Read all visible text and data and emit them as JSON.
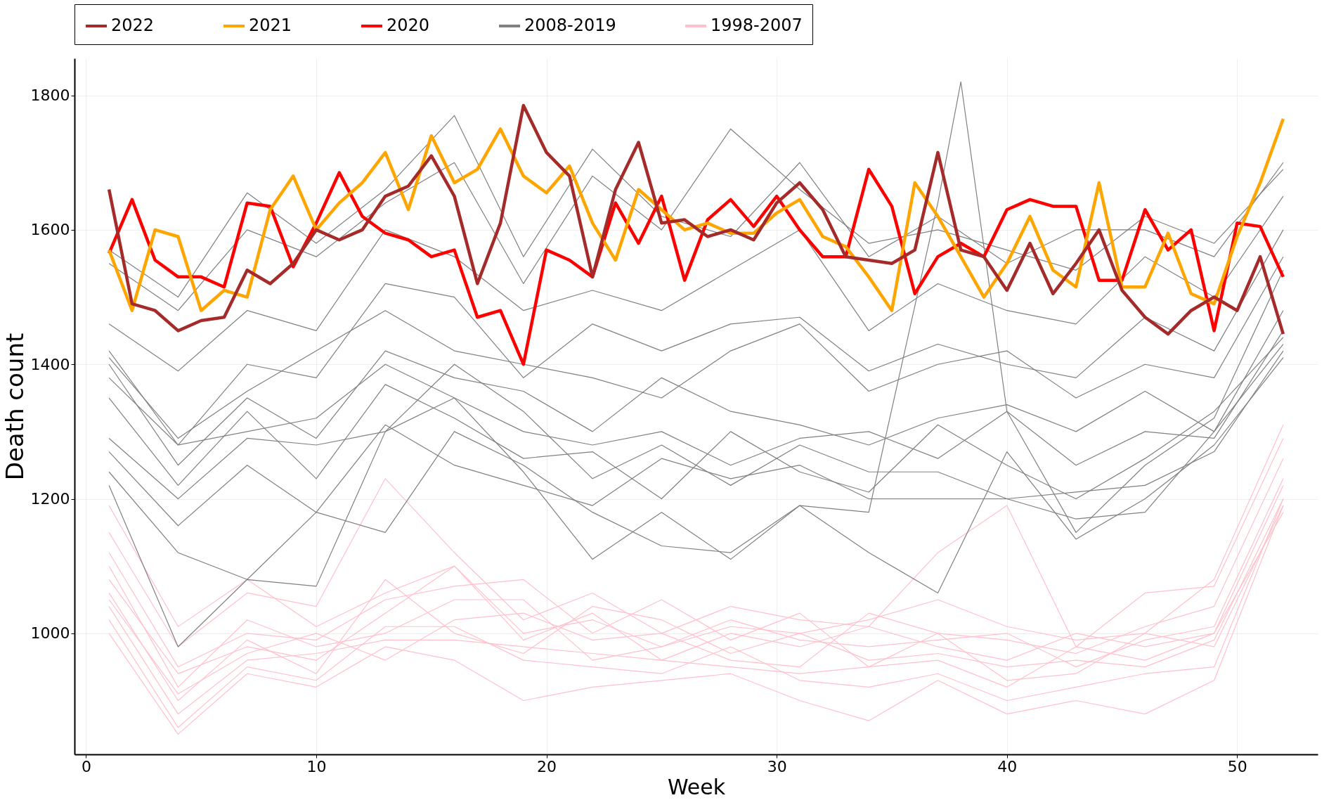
{
  "chart_data": {
    "type": "line",
    "xlabel": "Week",
    "ylabel": "Death count",
    "xlim": [
      -0.5,
      53.5
    ],
    "xticks": [
      0,
      10,
      20,
      30,
      40,
      50
    ],
    "ylim": [
      820,
      1855
    ],
    "yticks": [
      1000,
      1200,
      1400,
      1600,
      1800
    ],
    "grid": true,
    "legend": "top",
    "marker": "none",
    "line_style": "solid",
    "series": [
      {
        "name": "2022",
        "color": "#a52a2a",
        "x": [
          1,
          2,
          3,
          4,
          5,
          6,
          7,
          8,
          9,
          10,
          11,
          12,
          13,
          14,
          15,
          16,
          17,
          18,
          19,
          20,
          21,
          22,
          23,
          24,
          25,
          26,
          27,
          28,
          29,
          30,
          31,
          32,
          33,
          34,
          35,
          36,
          37,
          38,
          39,
          40,
          41,
          42,
          43,
          44,
          45,
          46,
          47,
          48,
          49,
          50,
          51,
          52
        ],
        "values": [
          1660,
          1490,
          1480,
          1450,
          1465,
          1470,
          1540,
          1520,
          1550,
          1600,
          1585,
          1600,
          1650,
          1665,
          1710,
          1650,
          1520,
          1610,
          1785,
          1715,
          1680,
          1530,
          1660,
          1730,
          1610,
          1615,
          1590,
          1600,
          1585,
          1640,
          1670,
          1630,
          1560,
          1555,
          1550,
          1570,
          1715,
          1570,
          1560,
          1510,
          1580,
          1505,
          1550,
          1600,
          1510,
          1470,
          1445,
          1480,
          1500,
          1480,
          1560,
          1445
        ]
      },
      {
        "name": "2021",
        "color": "#ffa500",
        "x": [
          1,
          2,
          3,
          4,
          5,
          6,
          7,
          8,
          9,
          10,
          11,
          12,
          13,
          14,
          15,
          16,
          17,
          18,
          19,
          20,
          21,
          22,
          23,
          24,
          25,
          26,
          27,
          28,
          29,
          30,
          31,
          32,
          33,
          34,
          35,
          36,
          37,
          38,
          39,
          40,
          41,
          42,
          43,
          44,
          45,
          46,
          47,
          48,
          49,
          50,
          51,
          52
        ],
        "values": [
          1570,
          1480,
          1600,
          1590,
          1480,
          1510,
          1500,
          1630,
          1680,
          1600,
          1640,
          1670,
          1715,
          1630,
          1740,
          1670,
          1690,
          1750,
          1680,
          1655,
          1695,
          1610,
          1555,
          1660,
          1630,
          1600,
          1610,
          1595,
          1595,
          1625,
          1645,
          1590,
          1575,
          1530,
          1480,
          1670,
          1620,
          1560,
          1500,
          1550,
          1620,
          1540,
          1515,
          1670,
          1515,
          1515,
          1595,
          1505,
          1490,
          1590,
          1670,
          1765
        ]
      },
      {
        "name": "2020",
        "color": "#ff0000",
        "x": [
          1,
          2,
          3,
          4,
          5,
          6,
          7,
          8,
          9,
          10,
          11,
          12,
          13,
          14,
          15,
          16,
          17,
          18,
          19,
          20,
          21,
          22,
          23,
          24,
          25,
          26,
          27,
          28,
          29,
          30,
          31,
          32,
          33,
          34,
          35,
          36,
          37,
          38,
          39,
          40,
          41,
          42,
          43,
          44,
          45,
          46,
          47,
          48,
          49,
          50,
          51,
          52
        ],
        "values": [
          1565,
          1645,
          1555,
          1530,
          1530,
          1515,
          1640,
          1635,
          1545,
          1610,
          1685,
          1620,
          1595,
          1585,
          1560,
          1570,
          1470,
          1480,
          1400,
          1570,
          1555,
          1530,
          1640,
          1580,
          1650,
          1525,
          1615,
          1645,
          1605,
          1650,
          1600,
          1560,
          1560,
          1690,
          1635,
          1505,
          1560,
          1580,
          1560,
          1630,
          1645,
          1635,
          1635,
          1525,
          1525,
          1630,
          1570,
          1600,
          1450,
          1610,
          1605,
          1530
        ]
      },
      {
        "name": "2008-2019",
        "color": "#808080",
        "x": [
          1,
          4,
          7,
          10,
          13,
          16,
          19,
          22,
          25,
          28,
          31,
          34,
          37,
          40,
          43,
          46,
          49,
          52
        ],
        "values": [
          1570,
          1500,
          1655,
          1580,
          1660,
          1770,
          1560,
          1720,
          1620,
          1590,
          1700,
          1560,
          1620,
          1550,
          1600,
          1600,
          1560,
          1700
        ]
      },
      {
        "color": "#808080",
        "x": [
          1,
          4,
          7,
          10,
          13,
          16,
          19,
          22,
          25,
          28,
          31,
          34,
          37,
          40,
          43,
          46,
          49,
          52
        ],
        "values": [
          1550,
          1480,
          1600,
          1560,
          1640,
          1700,
          1520,
          1680,
          1600,
          1750,
          1660,
          1580,
          1600,
          1570,
          1540,
          1620,
          1580,
          1690
        ]
      },
      {
        "color": "#808080",
        "x": [
          1,
          4,
          7,
          10,
          13,
          16,
          19,
          22,
          25,
          28,
          31,
          34,
          37,
          40,
          43,
          46,
          49,
          52
        ],
        "values": [
          1460,
          1390,
          1480,
          1450,
          1600,
          1560,
          1480,
          1510,
          1480,
          1540,
          1600,
          1450,
          1520,
          1480,
          1460,
          1560,
          1500,
          1650
        ]
      },
      {
        "color": "#808080",
        "x": [
          1,
          4,
          7,
          10,
          13,
          16,
          19,
          22,
          25,
          28,
          31,
          34,
          37,
          40,
          43,
          46,
          49,
          52
        ],
        "values": [
          1420,
          1280,
          1400,
          1380,
          1520,
          1500,
          1380,
          1460,
          1420,
          1460,
          1470,
          1390,
          1430,
          1400,
          1380,
          1470,
          1420,
          1600
        ]
      },
      {
        "color": "#808080",
        "x": [
          1,
          4,
          7,
          10,
          13,
          16,
          19,
          22,
          25,
          28,
          31,
          34,
          37,
          40,
          43,
          46,
          49,
          52
        ],
        "values": [
          1410,
          1290,
          1360,
          1420,
          1480,
          1420,
          1400,
          1380,
          1350,
          1420,
          1460,
          1360,
          1400,
          1420,
          1350,
          1400,
          1380,
          1560
        ]
      },
      {
        "color": "#808080",
        "x": [
          1,
          4,
          7,
          10,
          13,
          16,
          19,
          22,
          25,
          28,
          31,
          34,
          37,
          40,
          43,
          46,
          49,
          52
        ],
        "values": [
          1400,
          1250,
          1350,
          1290,
          1420,
          1380,
          1360,
          1300,
          1380,
          1330,
          1310,
          1280,
          1320,
          1340,
          1300,
          1360,
          1300,
          1480
        ]
      },
      {
        "color": "#808080",
        "x": [
          1,
          4,
          7,
          10,
          13,
          16,
          19,
          22,
          25,
          28,
          31,
          34,
          37,
          40,
          43,
          46,
          49,
          52
        ],
        "values": [
          1380,
          1280,
          1300,
          1320,
          1400,
          1350,
          1300,
          1280,
          1300,
          1250,
          1290,
          1300,
          1260,
          1330,
          1250,
          1300,
          1290,
          1450
        ]
      },
      {
        "color": "#808080",
        "x": [
          1,
          4,
          7,
          10,
          13,
          16,
          19,
          22,
          25,
          28,
          31,
          34,
          37,
          40,
          43,
          46,
          49,
          52
        ],
        "values": [
          1350,
          1220,
          1330,
          1230,
          1370,
          1320,
          1260,
          1270,
          1200,
          1300,
          1240,
          1210,
          1310,
          1250,
          1200,
          1260,
          1330,
          1440
        ]
      },
      {
        "color": "#808080",
        "x": [
          1,
          4,
          7,
          10,
          13,
          16,
          19,
          22,
          25,
          28,
          31,
          34,
          37,
          40,
          43,
          46,
          49,
          52
        ],
        "values": [
          1290,
          1200,
          1290,
          1280,
          1300,
          1400,
          1330,
          1230,
          1280,
          1220,
          1280,
          1240,
          1240,
          1200,
          1210,
          1220,
          1270,
          1420
        ]
      },
      {
        "color": "#808080",
        "x": [
          1,
          4,
          7,
          10,
          13,
          16,
          19,
          22,
          25,
          28,
          31,
          34,
          37,
          40,
          43,
          46,
          49,
          52
        ],
        "values": [
          1270,
          1160,
          1250,
          1180,
          1310,
          1250,
          1220,
          1190,
          1260,
          1230,
          1250,
          1200,
          1200,
          1200,
          1170,
          1180,
          1300,
          1430
        ]
      },
      {
        "color": "#808080",
        "x": [
          1,
          4,
          7,
          10,
          13,
          16,
          19,
          22,
          25,
          28,
          31,
          34,
          37,
          38,
          40,
          43,
          46,
          49,
          52
        ],
        "values": [
          1220,
          980,
          1080,
          1070,
          1300,
          1350,
          1240,
          1110,
          1180,
          1110,
          1190,
          1180,
          1640,
          1820,
          1330,
          1150,
          1250,
          1320,
          1540
        ]
      },
      {
        "color": "#808080",
        "x": [
          1,
          4,
          7,
          10,
          13,
          16,
          19,
          22,
          25,
          28,
          31,
          34,
          37,
          40,
          43,
          46,
          49,
          52
        ],
        "values": [
          1240,
          1120,
          1080,
          1180,
          1150,
          1300,
          1250,
          1180,
          1130,
          1120,
          1190,
          1120,
          1060,
          1270,
          1140,
          1200,
          1280,
          1410
        ]
      },
      {
        "name": "1998-2007",
        "color": "#ffc0cb",
        "x": [
          1,
          4,
          7,
          10,
          13,
          16,
          19,
          22,
          25,
          28,
          31,
          34,
          37,
          40,
          43,
          46,
          49,
          52
        ],
        "values": [
          1190,
          1010,
          1080,
          1010,
          1060,
          1100,
          1000,
          1020,
          980,
          1010,
          1000,
          1020,
          1050,
          1010,
          990,
          1000,
          1080,
          1310
        ]
      },
      {
        "color": "#ffc0cb",
        "x": [
          1,
          4,
          7,
          10,
          13,
          16,
          19,
          22,
          25,
          28,
          31,
          34,
          37,
          40,
          43,
          46,
          49,
          52
        ],
        "values": [
          1150,
          980,
          1060,
          1040,
          1230,
          1120,
          1020,
          1060,
          1000,
          1040,
          1020,
          1010,
          1120,
          1190,
          980,
          1060,
          1070,
          1290
        ]
      },
      {
        "color": "#ffc0cb",
        "x": [
          1,
          4,
          7,
          10,
          13,
          16,
          19,
          22,
          25,
          28,
          31,
          34,
          37,
          40,
          43,
          46,
          49,
          52
        ],
        "values": [
          1120,
          950,
          1000,
          990,
          1050,
          1070,
          1080,
          1000,
          1050,
          990,
          1030,
          950,
          1000,
          990,
          970,
          1010,
          1040,
          1260
        ]
      },
      {
        "color": "#ffc0cb",
        "x": [
          1,
          4,
          7,
          10,
          13,
          16,
          19,
          22,
          25,
          28,
          31,
          34,
          37,
          40,
          43,
          46,
          49,
          52
        ],
        "values": [
          1100,
          920,
          1020,
          980,
          1000,
          1050,
          1050,
          960,
          980,
          1020,
          990,
          980,
          990,
          1000,
          950,
          990,
          1010,
          1230
        ]
      },
      {
        "color": "#ffc0cb",
        "x": [
          1,
          4,
          7,
          10,
          13,
          16,
          19,
          22,
          25,
          28,
          31,
          34,
          37,
          40,
          43,
          46,
          49,
          52
        ],
        "values": [
          1080,
          940,
          980,
          960,
          1030,
          1100,
          990,
          1030,
          960,
          1000,
          980,
          1010,
          980,
          960,
          1000,
          980,
          1000,
          1220
        ]
      },
      {
        "color": "#ffc0cb",
        "x": [
          1,
          4,
          7,
          10,
          13,
          16,
          19,
          22,
          25,
          28,
          31,
          34,
          37,
          40,
          43,
          46,
          49,
          52
        ],
        "values": [
          1060,
          900,
          990,
          940,
          1080,
          1000,
          970,
          1040,
          1020,
          970,
          1000,
          960,
          970,
          950,
          960,
          950,
          990,
          1200
        ]
      },
      {
        "color": "#ffc0cb",
        "x": [
          1,
          4,
          7,
          10,
          13,
          16,
          19,
          22,
          25,
          28,
          31,
          34,
          37,
          40,
          43,
          46,
          49,
          52
        ],
        "values": [
          1050,
          910,
          970,
          1000,
          960,
          1020,
          1030,
          990,
          1000,
          960,
          950,
          1030,
          1000,
          930,
          940,
          1000,
          980,
          1190
        ]
      },
      {
        "color": "#ffc0cb",
        "x": [
          1,
          4,
          7,
          10,
          13,
          16,
          19,
          22,
          25,
          28,
          31,
          34,
          37,
          40,
          43,
          46,
          49,
          52
        ],
        "values": [
          1040,
          880,
          960,
          970,
          990,
          990,
          980,
          970,
          960,
          950,
          940,
          950,
          960,
          920,
          980,
          960,
          1000,
          1180
        ]
      },
      {
        "color": "#ffc0cb",
        "x": [
          1,
          4,
          7,
          10,
          13,
          16,
          19,
          22,
          25,
          28,
          31,
          34,
          37,
          40,
          43,
          46,
          49,
          52
        ],
        "values": [
          1020,
          860,
          950,
          930,
          1010,
          1010,
          960,
          950,
          940,
          980,
          930,
          920,
          940,
          900,
          920,
          940,
          950,
          1200
        ]
      },
      {
        "color": "#ffc0cb",
        "x": [
          1,
          4,
          7,
          10,
          13,
          16,
          19,
          22,
          25,
          28,
          31,
          34,
          37,
          40,
          43,
          46,
          49,
          52
        ],
        "values": [
          1000,
          850,
          940,
          920,
          980,
          960,
          900,
          920,
          930,
          940,
          900,
          870,
          930,
          880,
          900,
          880,
          930,
          1190
        ]
      }
    ]
  }
}
